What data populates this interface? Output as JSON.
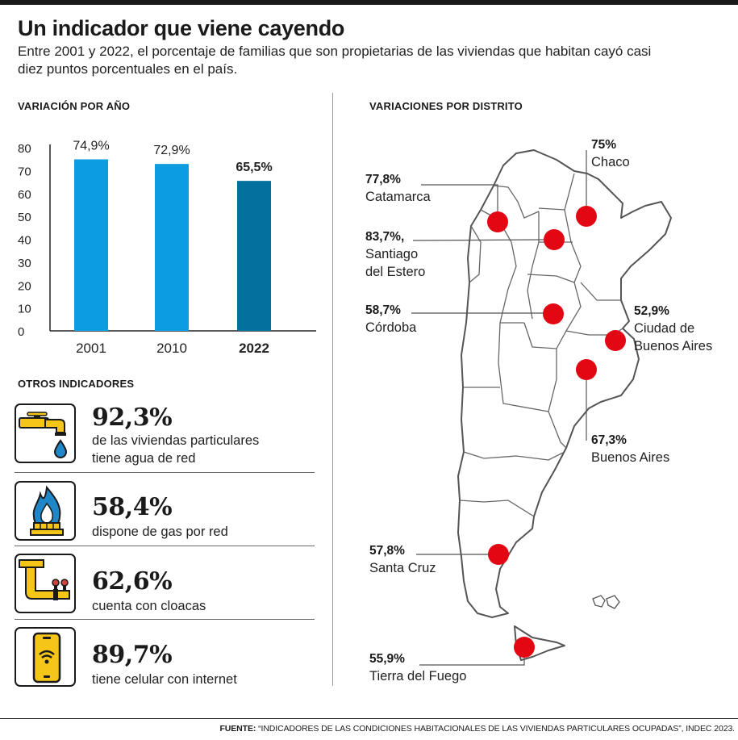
{
  "header": {
    "title": "Un indicador que viene cayendo",
    "subtitle": "Entre 2001 y 2022, el porcentaje de familias que son propietarias de las viviendas que habitan cayó casi diez puntos porcentuales en el país."
  },
  "chart_data": [
    {
      "type": "bar",
      "title": "VARIACIÓN POR AÑO",
      "categories": [
        "2001",
        "2010",
        "2022"
      ],
      "values": [
        74.9,
        72.9,
        65.5
      ],
      "labels": [
        "74,9%",
        "72,9%",
        "65,5%"
      ],
      "highlight_index": 2,
      "yticks": [
        0,
        10,
        20,
        30,
        40,
        50,
        60,
        70,
        80
      ],
      "ylim": [
        0,
        80
      ],
      "xlabel": "",
      "ylabel": "",
      "colors": {
        "bar": "#0b9ddf",
        "highlight": "#04709e"
      }
    },
    {
      "type": "map",
      "title": "VARIACIONES POR DISTRITO",
      "marker_color": "#e30613",
      "districts": [
        {
          "name": "Chaco",
          "value": "75%"
        },
        {
          "name": "Catamarca",
          "value": "77,8%"
        },
        {
          "name": "Santiago del Estero",
          "name_lines": [
            "Santiago",
            "del Estero"
          ],
          "value": "83,7%,"
        },
        {
          "name": "Córdoba",
          "value": "58,7%"
        },
        {
          "name": "Ciudad de Buenos Aires",
          "name_lines": [
            "Ciudad de",
            "Buenos Aires"
          ],
          "value": "52,9%"
        },
        {
          "name": "Buenos Aires",
          "value": "67,3%"
        },
        {
          "name": "Santa Cruz",
          "value": "57,8%"
        },
        {
          "name": "Tierra del Fuego",
          "value": "55,9%"
        }
      ]
    }
  ],
  "other": {
    "title": "OTROS INDICADORES",
    "items": [
      {
        "icon": "water-faucet-icon",
        "value": "92,3%",
        "desc1": "de las viviendas particulares",
        "desc2": "tiene agua de red"
      },
      {
        "icon": "gas-flame-icon",
        "value": "58,4%",
        "desc1": "dispone de gas por red",
        "desc2": ""
      },
      {
        "icon": "sewer-pipe-icon",
        "value": "62,6%",
        "desc1": "cuenta con cloacas",
        "desc2": ""
      },
      {
        "icon": "mobile-wifi-icon",
        "value": "89,7%",
        "desc1": "tiene celular con internet",
        "desc2": ""
      }
    ]
  },
  "source": {
    "label": "FUENTE:",
    "text": "“INDICADORES DE LAS CONDICIONES HABITACIONALES DE LAS VIVIENDAS PARTICULARES OCUPADAS”, INDEC 2023."
  },
  "colors": {
    "accent_blue": "#0b9ddf",
    "dark_blue": "#04709e",
    "red": "#e30613",
    "icon_yellow": "#f5c518",
    "icon_blue": "#1f86c8"
  }
}
